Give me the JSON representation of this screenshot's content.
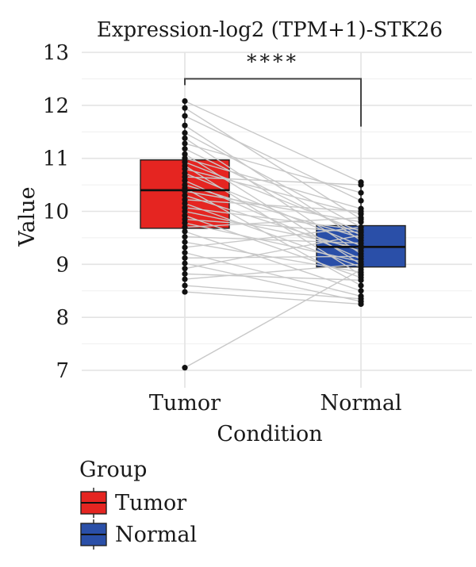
{
  "chart_data": {
    "type": "box",
    "title": "Expression-log2 (TPM+1)-STK26",
    "xlabel": "Condition",
    "ylabel": "Value",
    "ylim": [
      6.85,
      13.0
    ],
    "yticks": [
      7,
      8,
      9,
      10,
      11,
      12,
      13
    ],
    "categories": [
      "Tumor",
      "Normal"
    ],
    "series": [
      {
        "name": "Tumor",
        "color": "#e52521",
        "box": {
          "min": 8.45,
          "q1": 9.68,
          "median": 10.4,
          "q3": 10.97,
          "max": 12.1
        }
      },
      {
        "name": "Normal",
        "color": "#2a4fa8",
        "box": {
          "min": 8.25,
          "q1": 8.95,
          "median": 9.33,
          "q3": 9.73,
          "max": 10.6
        }
      }
    ],
    "paired_values": [
      [
        12.08,
        10.55
      ],
      [
        11.95,
        9.85
      ],
      [
        11.8,
        10.2
      ],
      [
        11.62,
        9.45
      ],
      [
        11.48,
        9.7
      ],
      [
        11.38,
        9.2
      ],
      [
        11.28,
        10.35
      ],
      [
        11.18,
        9.55
      ],
      [
        11.08,
        9.0
      ],
      [
        11.0,
        10.05
      ],
      [
        10.93,
        9.62
      ],
      [
        10.86,
        8.8
      ],
      [
        10.8,
        9.95
      ],
      [
        10.72,
        9.35
      ],
      [
        10.65,
        10.5
      ],
      [
        10.58,
        9.1
      ],
      [
        10.5,
        9.5
      ],
      [
        10.44,
        8.6
      ],
      [
        10.38,
        9.8
      ],
      [
        10.3,
        9.25
      ],
      [
        10.22,
        10.0
      ],
      [
        10.15,
        8.95
      ],
      [
        10.07,
        9.65
      ],
      [
        10.0,
        9.3
      ],
      [
        9.92,
        8.75
      ],
      [
        9.85,
        9.6
      ],
      [
        9.78,
        9.05
      ],
      [
        9.7,
        9.88
      ],
      [
        9.62,
        8.5
      ],
      [
        9.52,
        9.4
      ],
      [
        9.42,
        8.85
      ],
      [
        9.32,
        9.7
      ],
      [
        9.22,
        8.4
      ],
      [
        9.12,
        9.15
      ],
      [
        9.02,
        8.3
      ],
      [
        8.92,
        9.55
      ],
      [
        8.82,
        8.7
      ],
      [
        8.72,
        9.0
      ],
      [
        8.6,
        8.35
      ],
      [
        8.48,
        8.25
      ],
      [
        7.05,
        8.9
      ]
    ],
    "significance": {
      "label": "****",
      "between": [
        "Tumor",
        "Normal"
      ],
      "bracket_y": 12.5,
      "right_drop_to": 11.6
    },
    "grid": true,
    "legend": {
      "title": "Group",
      "position": "bottom-left",
      "items": [
        {
          "label": "Tumor",
          "color": "#e52521"
        },
        {
          "label": "Normal",
          "color": "#2a4fa8"
        }
      ]
    }
  }
}
